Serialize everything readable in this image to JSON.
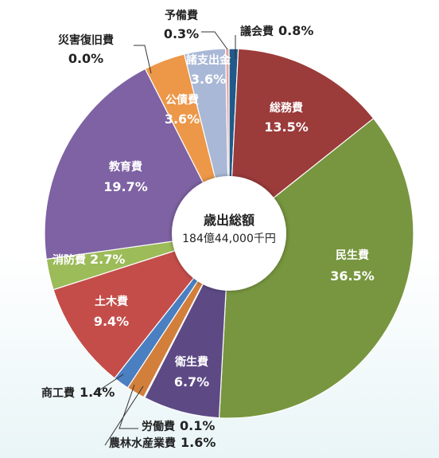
{
  "chart_data": {
    "type": "pie",
    "center_title": "歳出総額",
    "center_total": "184億44,000千円",
    "slices": [
      {
        "name": "議会費",
        "pct_text": "0.8%",
        "value": 0.8,
        "color": "#1f5a8a",
        "label_mode": "outside"
      },
      {
        "name": "総務費",
        "pct_text": "13.5%",
        "value": 13.5,
        "color": "#9b3b3a",
        "label_mode": "inside"
      },
      {
        "name": "民生費",
        "pct_text": "36.5%",
        "value": 36.5,
        "color": "#77963f",
        "label_mode": "inside"
      },
      {
        "name": "衛生費",
        "pct_text": "6.7%",
        "value": 6.7,
        "color": "#5d4a85",
        "label_mode": "inside"
      },
      {
        "name": "労働費",
        "pct_text": "0.1%",
        "value": 0.1,
        "color": "#2d7f95",
        "label_mode": "outside"
      },
      {
        "name": "農林水産業費",
        "pct_text": "1.6%",
        "value": 1.6,
        "color": "#d27f3c",
        "label_mode": "outside"
      },
      {
        "name": "商工費",
        "pct_text": "1.4%",
        "value": 1.4,
        "color": "#4a7fc1",
        "label_mode": "outside"
      },
      {
        "name": "土木費",
        "pct_text": "9.4%",
        "value": 9.4,
        "color": "#c44d4a",
        "label_mode": "inside"
      },
      {
        "name": "消防費",
        "pct_text": "2.7%",
        "value": 2.7,
        "color": "#9cbb59",
        "label_mode": "inline"
      },
      {
        "name": "教育費",
        "pct_text": "19.7%",
        "value": 19.7,
        "color": "#7e62a3",
        "label_mode": "inside"
      },
      {
        "name": "災害復旧費",
        "pct_text": "0.0%",
        "value": 0.0,
        "color": "#2d9bb0",
        "label_mode": "outside"
      },
      {
        "name": "公債費",
        "pct_text": "3.6%",
        "value": 3.6,
        "color": "#ed9748",
        "label_mode": "inside"
      },
      {
        "name": "諸支出金",
        "pct_text": "3.6%",
        "value": 3.6,
        "color": "#a9b8d6",
        "label_mode": "inside"
      },
      {
        "name": "予備費",
        "pct_text": "0.3%",
        "value": 0.3,
        "color": "#e8a5a3",
        "label_mode": "outside"
      }
    ]
  }
}
